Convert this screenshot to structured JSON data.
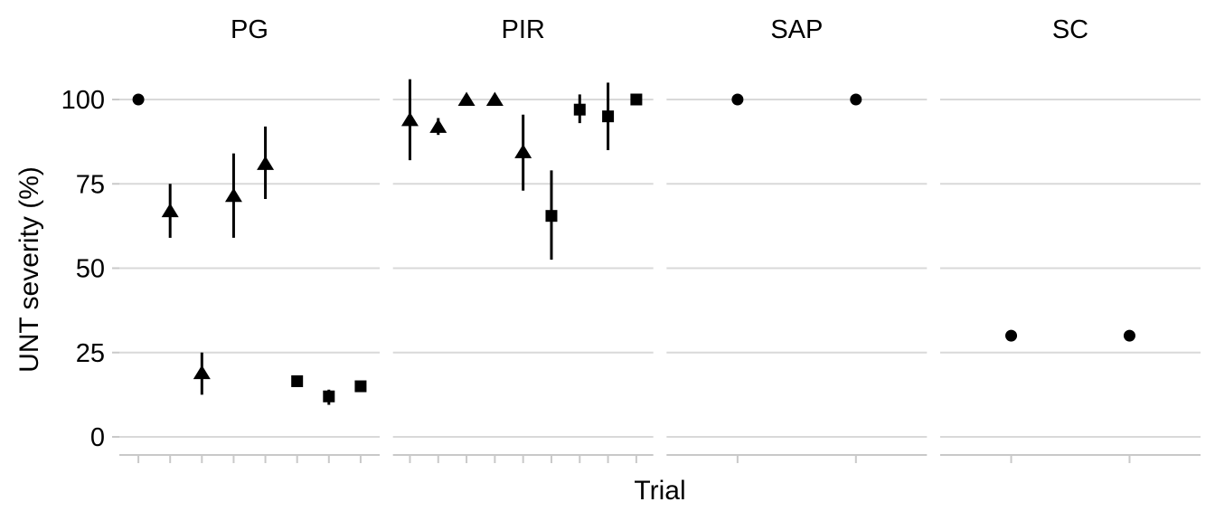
{
  "chart_data": {
    "type": "scatter",
    "title": "",
    "xlabel": "Trial",
    "ylabel": "UNT severity (%)",
    "ylim": [
      0,
      100
    ],
    "yticks": [
      100,
      75,
      50,
      25,
      0
    ],
    "grid": "horizontal-major-only",
    "legend": "none",
    "facet_variable_levels": [
      "PG",
      "PIR",
      "SAP",
      "SC"
    ],
    "point_style": "filled black markers (shape varies), vertical error bars without caps, one unlabeled x tick per trial",
    "facets": [
      {
        "label": "PG",
        "n_trials": 8,
        "points": [
          {
            "trial": 1,
            "shape": "circle",
            "y": 100
          },
          {
            "trial": 2,
            "shape": "triangle",
            "y": 67,
            "ymin": 59,
            "ymax": 75
          },
          {
            "trial": 3,
            "shape": "triangle",
            "y": 19,
            "ymin": 12.5,
            "ymax": 25
          },
          {
            "trial": 4,
            "shape": "triangle",
            "y": 71.5,
            "ymin": 59,
            "ymax": 84
          },
          {
            "trial": 5,
            "shape": "triangle",
            "y": 81,
            "ymin": 70.5,
            "ymax": 92
          },
          {
            "trial": 6,
            "shape": "square",
            "y": 16.5
          },
          {
            "trial": 7,
            "shape": "square",
            "y": 12,
            "ymin": 9.5,
            "ymax": 14
          },
          {
            "trial": 8,
            "shape": "square",
            "y": 15
          }
        ]
      },
      {
        "label": "PIR",
        "n_trials": 9,
        "points": [
          {
            "trial": 1,
            "shape": "triangle",
            "y": 94,
            "ymin": 82,
            "ymax": 106
          },
          {
            "trial": 2,
            "shape": "triangle",
            "y": 92,
            "ymin": 89.5,
            "ymax": 94.5
          },
          {
            "trial": 3,
            "shape": "triangle",
            "y": 100
          },
          {
            "trial": 4,
            "shape": "triangle",
            "y": 100
          },
          {
            "trial": 5,
            "shape": "triangle",
            "y": 84.5,
            "ymin": 73,
            "ymax": 95.5
          },
          {
            "trial": 6,
            "shape": "square",
            "y": 65.5,
            "ymin": 52.5,
            "ymax": 79
          },
          {
            "trial": 7,
            "shape": "square",
            "y": 97,
            "ymin": 93,
            "ymax": 101.5
          },
          {
            "trial": 8,
            "shape": "square",
            "y": 95,
            "ymin": 85,
            "ymax": 105
          },
          {
            "trial": 9,
            "shape": "square",
            "y": 100
          }
        ]
      },
      {
        "label": "SAP",
        "n_trials": 2,
        "points": [
          {
            "trial": 1,
            "shape": "circle",
            "y": 100
          },
          {
            "trial": 2,
            "shape": "circle",
            "y": 100
          }
        ]
      },
      {
        "label": "SC",
        "n_trials": 2,
        "points": [
          {
            "trial": 1,
            "shape": "circle",
            "y": 30
          },
          {
            "trial": 2,
            "shape": "circle",
            "y": 30
          }
        ]
      }
    ],
    "colors": {
      "marker": "#000000",
      "gridline": "#d9d9d9",
      "axis": "#c9c9c9",
      "text": "#000000",
      "background": "#ffffff"
    }
  }
}
